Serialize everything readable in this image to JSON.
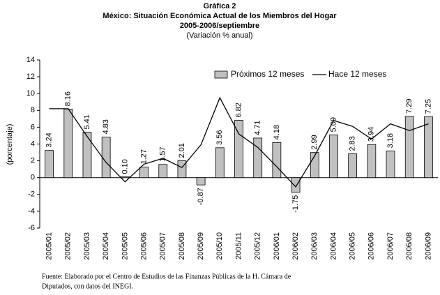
{
  "chart_data": {
    "type": "bar_line",
    "title": "Gráfica 2",
    "subtitle": "México: Situación Económica Actual de los Miembros del Hogar",
    "period": "2005-2006/septiembre",
    "note": "(Variación % anual)",
    "y_label": "(porcentaje)",
    "source": [
      "Fuente: Elaborado por el Centro de Estudios de las Finanzas Públicas de la H. Cámara de",
      "Diputados, con datos del INEGI."
    ],
    "categories": [
      "2005/01",
      "2005/02",
      "2005/03",
      "2005/04",
      "2005/05",
      "2005/06",
      "2005/07",
      "2005/08",
      "2005/09",
      "2005/10",
      "2005/11",
      "2005/12",
      "2006/01",
      "2006/02",
      "2006/03",
      "2006/04",
      "2006/05",
      "2006/06",
      "2006/07",
      "2006/08",
      "2006/09"
    ],
    "series": [
      {
        "name": "Próximos 12 meses",
        "type": "bar",
        "color": "#c0c0c0",
        "values": [
          3.24,
          8.16,
          5.41,
          4.83,
          0.1,
          1.27,
          1.57,
          2.01,
          -0.87,
          3.56,
          6.82,
          4.71,
          4.18,
          -1.75,
          2.99,
          5.09,
          2.83,
          3.94,
          3.18,
          7.29,
          7.25
        ],
        "value_labels": [
          "3.24",
          "8.16",
          "5.41",
          "4.83",
          "0.10",
          "1.27",
          "1.57",
          "2.01",
          "-0.87",
          "3.56",
          "6.82",
          "4.71",
          "4.18",
          "-1.75",
          "2.99",
          "5.09",
          "2.83",
          "3.94",
          "3.18",
          "7.29",
          "7.25"
        ]
      },
      {
        "name": "Hace 12 meses",
        "type": "line",
        "color": "#000000",
        "values": [
          8.2,
          8.2,
          4.9,
          1.8,
          -0.5,
          1.6,
          2.3,
          1.2,
          3.9,
          9.5,
          5.2,
          3.6,
          1.3,
          -1.1,
          2.6,
          6.8,
          6.1,
          4.6,
          6.4,
          5.6,
          6.4
        ]
      }
    ],
    "ylim": [
      -6,
      14
    ],
    "yticks": [
      -6,
      -4,
      -2,
      0,
      2,
      4,
      6,
      8,
      10,
      12,
      14
    ],
    "grid": false,
    "legend": "top-right"
  }
}
